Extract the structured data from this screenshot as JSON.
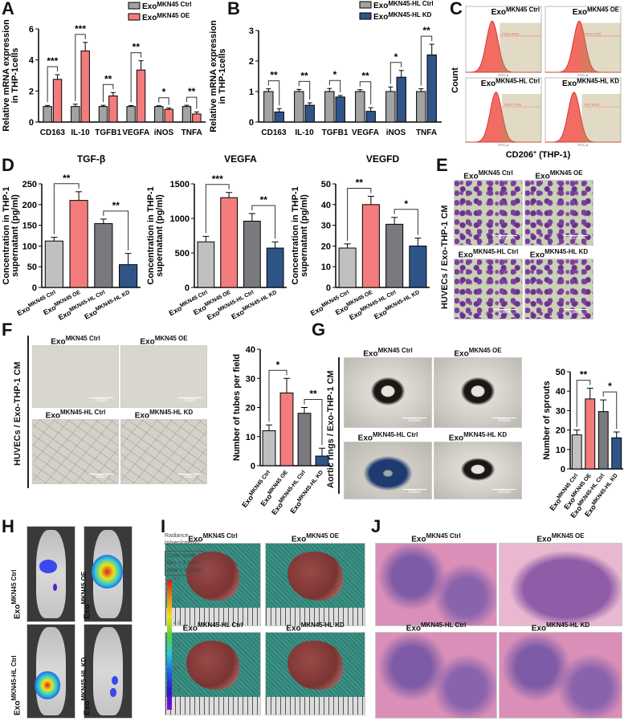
{
  "panel_letters": [
    "A",
    "B",
    "C",
    "D",
    "E",
    "F",
    "G",
    "H",
    "I",
    "J"
  ],
  "groups": {
    "ctrl": {
      "base": "Exo",
      "sup": "MKN45 Ctrl"
    },
    "oe": {
      "base": "Exo",
      "sup": "MKN45 OE"
    },
    "hl_ctrl": {
      "base": "Exo",
      "sup": "MKN45-HL Ctrl"
    },
    "hl_kd": {
      "base": "Exo",
      "sup": "MKN45-HL KD"
    }
  },
  "colors": {
    "ctrl": "#c0c0c0",
    "oe": "#f47b7b",
    "hl_ctrl": "#7a7a7e",
    "hl_kd": "#2f5588",
    "grouped_ctrl": "#a3a3a3"
  },
  "chart_data": [
    {
      "id": "A",
      "type": "bar",
      "ylabel": [
        "Relative mRNA expression",
        "in THP-1cells"
      ],
      "ylim": [
        0,
        6
      ],
      "yticks": [
        0,
        2,
        4,
        6
      ],
      "categories": [
        "CD163",
        "IL-10",
        "TGFB1",
        "VEGFA",
        "iNOS",
        "TNFA"
      ],
      "series": [
        {
          "name": "Exo",
          "name_sup": "MKN45 Ctrl",
          "color": "#a3a3a3",
          "values": [
            1.0,
            1.0,
            1.0,
            1.0,
            1.0,
            1.0
          ],
          "errors": [
            0.07,
            0.15,
            0.08,
            0.06,
            0.05,
            0.08
          ]
        },
        {
          "name": "Exo",
          "name_sup": "MKN45 OE",
          "color": "#f47b7b",
          "values": [
            2.75,
            4.58,
            1.68,
            3.35,
            0.82,
            0.52
          ],
          "errors": [
            0.3,
            0.55,
            0.22,
            0.6,
            0.08,
            0.13
          ]
        }
      ],
      "significance": [
        "***",
        "***",
        "**",
        "**",
        "*",
        "**"
      ]
    },
    {
      "id": "B",
      "type": "bar",
      "ylabel": [
        "Relative mRNA expression",
        "in THP-1cells"
      ],
      "ylim": [
        0,
        3
      ],
      "yticks": [
        0,
        1,
        2,
        3
      ],
      "categories": [
        "CD163",
        "IL-10",
        "TGFB1",
        "VEGFA",
        "iNOS",
        "TNFA"
      ],
      "series": [
        {
          "name": "Exo",
          "name_sup": "MKN45-HL Ctrl",
          "color": "#a3a3a3",
          "values": [
            1.0,
            1.0,
            1.0,
            1.0,
            1.0,
            1.0
          ],
          "errors": [
            0.09,
            0.07,
            0.1,
            0.06,
            0.15,
            0.09
          ]
        },
        {
          "name": "Exo",
          "name_sup": "MKN45-HL KD",
          "color": "#2f5588",
          "values": [
            0.33,
            0.55,
            0.82,
            0.35,
            1.47,
            2.2
          ],
          "errors": [
            0.11,
            0.08,
            0.05,
            0.12,
            0.22,
            0.35
          ]
        }
      ],
      "significance": [
        "**",
        "**",
        "*",
        "**",
        "*",
        "**"
      ]
    },
    {
      "id": "D1",
      "type": "bar",
      "title": "TGF-β",
      "ylabel": [
        "Concentration in THP-1",
        "supernatant (pg/ml)"
      ],
      "ylim": [
        0,
        250
      ],
      "yticks": [
        0,
        50,
        100,
        150,
        200,
        250
      ],
      "values": [
        112,
        210,
        154,
        55
      ],
      "errors": [
        9,
        21,
        11,
        27
      ],
      "significance": [
        {
          "bars": [
            0,
            1
          ],
          "label": "**"
        },
        {
          "bars": [
            2,
            3
          ],
          "label": "**"
        }
      ]
    },
    {
      "id": "D2",
      "type": "bar",
      "title": "VEGFA",
      "ylabel": [
        "Concentration in THP-1",
        "supernatant (pg/ml)"
      ],
      "ylim": [
        0,
        1500
      ],
      "yticks": [
        0,
        500,
        1000,
        1500
      ],
      "values": [
        660,
        1300,
        960,
        570
      ],
      "errors": [
        80,
        75,
        110,
        90
      ],
      "significance": [
        {
          "bars": [
            0,
            1
          ],
          "label": "***"
        },
        {
          "bars": [
            2,
            3
          ],
          "label": "**"
        }
      ]
    },
    {
      "id": "D3",
      "type": "bar",
      "title": "VEGFD",
      "ylabel": [
        "Concentration in THP-1",
        "supernatant (pg/ml)"
      ],
      "ylim": [
        0,
        50
      ],
      "yticks": [
        0,
        10,
        20,
        30,
        40,
        50
      ],
      "values": [
        19,
        40,
        30.5,
        20
      ],
      "errors": [
        2,
        4,
        3.3,
        3.8
      ],
      "significance": [
        {
          "bars": [
            0,
            1
          ],
          "label": "**"
        },
        {
          "bars": [
            2,
            3
          ],
          "label": "*"
        }
      ]
    },
    {
      "id": "F",
      "type": "bar",
      "ylabel": [
        "Number of tubes per field"
      ],
      "ylim": [
        0,
        40
      ],
      "yticks": [
        0,
        10,
        20,
        30,
        40
      ],
      "values": [
        12,
        25,
        18,
        3.3
      ],
      "errors": [
        2,
        5,
        2,
        2.7
      ],
      "significance": [
        {
          "bars": [
            0,
            1
          ],
          "label": "*"
        },
        {
          "bars": [
            2,
            3
          ],
          "label": "**"
        }
      ]
    },
    {
      "id": "G",
      "type": "bar",
      "ylabel": [
        "Number of sprouts"
      ],
      "ylim": [
        0,
        50
      ],
      "yticks": [
        0,
        10,
        20,
        30,
        40,
        50
      ],
      "values": [
        17.5,
        36,
        29.5,
        16
      ],
      "errors": [
        2.5,
        5.5,
        6,
        3
      ],
      "significance": [
        {
          "bars": [
            0,
            1
          ],
          "label": "**"
        },
        {
          "bars": [
            2,
            3
          ],
          "label": "*"
        }
      ]
    }
  ],
  "flow": {
    "ylabel": "Count",
    "xlabel_base": "CD206",
    "xlabel_sup": "+",
    "xlabel_tail": " (THP-1)",
    "axis_label": "FITC-A",
    "gates": [
      "P3(10.48%)",
      "P3(43.78%)",
      "P3(20.74%)",
      "P3(7.81%)"
    ],
    "positive_fraction": [
      0.1048,
      0.4378,
      0.2074,
      0.0781
    ]
  },
  "E": {
    "side_label": "HUVECs / Exo-THP-1 CM",
    "scale": "200μm"
  },
  "F": {
    "side_label": "HUVECs / Exo-THP-1 CM",
    "scale": "200μm"
  },
  "G": {
    "side_label": "Aortic rings / Exo-THP-1 CM",
    "scale": "500μm"
  },
  "H": {
    "radiance": "Radiance",
    "radiance_unit": "(p/sec/cm²/sr)",
    "scale_title": "Color Scale",
    "min": "Min = 3.33e7",
    "max": "Max = 6.06e8",
    "ticks": [
      "6.0",
      "5.0",
      "4.0",
      "3.0",
      "2.0",
      "1.0"
    ]
  }
}
